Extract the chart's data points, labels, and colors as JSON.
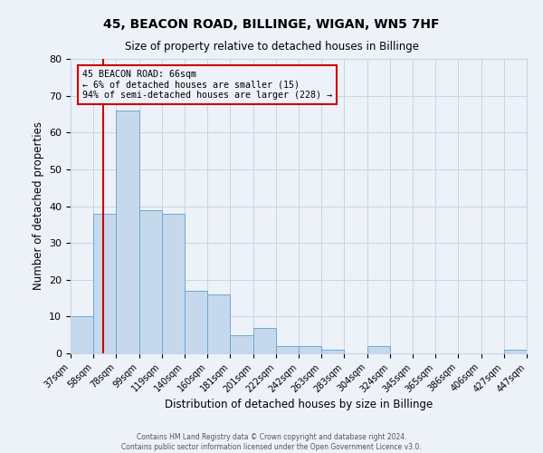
{
  "title": "45, BEACON ROAD, BILLINGE, WIGAN, WN5 7HF",
  "subtitle": "Size of property relative to detached houses in Billinge",
  "xlabel": "Distribution of detached houses by size in Billinge",
  "ylabel": "Number of detached properties",
  "bin_labels": [
    "37sqm",
    "58sqm",
    "78sqm",
    "99sqm",
    "119sqm",
    "140sqm",
    "160sqm",
    "181sqm",
    "201sqm",
    "222sqm",
    "242sqm",
    "263sqm",
    "283sqm",
    "304sqm",
    "324sqm",
    "345sqm",
    "365sqm",
    "386sqm",
    "406sqm",
    "427sqm",
    "447sqm"
  ],
  "bin_edges": [
    0,
    1,
    2,
    3,
    4,
    5,
    6,
    7,
    8,
    9,
    10,
    11,
    12,
    13,
    14,
    15,
    16,
    17,
    18,
    19,
    20
  ],
  "bar_heights": [
    10,
    38,
    66,
    39,
    38,
    17,
    16,
    5,
    7,
    2,
    2,
    1,
    0,
    2,
    0,
    0,
    0,
    0,
    0,
    1
  ],
  "bar_color": "#c6d9ec",
  "bar_edge_color": "#6aaad4",
  "property_line_x": 1.43,
  "property_line_color": "#cc0000",
  "annotation_text": "45 BEACON ROAD: 66sqm\n← 6% of detached houses are smaller (15)\n94% of semi-detached houses are larger (228) →",
  "annotation_box_color": "#cc0000",
  "ylim": [
    0,
    80
  ],
  "yticks": [
    0,
    10,
    20,
    30,
    40,
    50,
    60,
    70,
    80
  ],
  "grid_color": "#c8d4e8",
  "background_color": "#edf1f8",
  "footer_line1": "Contains HM Land Registry data © Crown copyright and database right 2024.",
  "footer_line2": "Contains public sector information licensed under the Open Government Licence v3.0."
}
